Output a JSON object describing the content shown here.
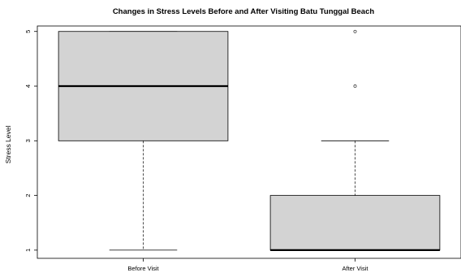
{
  "chart_data": {
    "type": "boxplot",
    "title": "Changes in Stress Levels Before and After Visiting Batu Tunggal Beach",
    "xlabel": "",
    "ylabel": "Stress Level",
    "ylim": [
      0.85,
      5.1
    ],
    "y_ticks": [
      "1",
      "2",
      "3",
      "4",
      "5"
    ],
    "categories": [
      "Before Visit",
      "After Visit"
    ],
    "boxes": [
      {
        "name": "Before Visit",
        "whisker_low": 1,
        "q1": 3,
        "median": 4,
        "q3": 5,
        "whisker_high": 5,
        "outliers": []
      },
      {
        "name": "After Visit",
        "whisker_low": 1,
        "q1": 1,
        "median": 1,
        "q3": 2,
        "whisker_high": 3,
        "outliers": [
          4,
          5
        ]
      }
    ],
    "colors": {
      "box_fill": "#d3d3d3",
      "line": "#000000",
      "median": "#000000"
    },
    "grid": false
  }
}
